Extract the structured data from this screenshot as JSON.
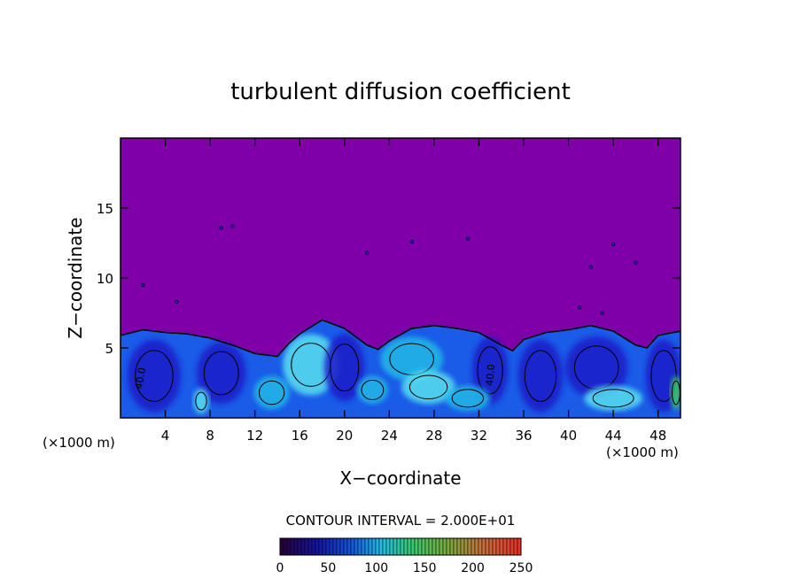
{
  "chart_data": {
    "type": "heatmap",
    "title": "turbulent diffusion coefficient",
    "xlabel": "X−coordinate",
    "ylabel": "Z−coordinate",
    "x_unit_left": "(×1000 m)",
    "x_unit_right": "(×1000 m)",
    "xlim": [
      0,
      50
    ],
    "ylim": [
      0,
      20
    ],
    "x_ticks": [
      4,
      8,
      12,
      16,
      20,
      24,
      28,
      32,
      36,
      40,
      44,
      48
    ],
    "y_ticks": [
      5,
      10,
      15
    ],
    "contour_interval_text": "CONTOUR INTERVAL = 2.000E+01",
    "contour_labels": [
      "40.0",
      "40.0"
    ],
    "colorbar": {
      "min": 0,
      "max": 250,
      "ticks": [
        0,
        50,
        100,
        150,
        200,
        250
      ]
    },
    "boundary_layer_top": [
      [
        0,
        5.9
      ],
      [
        2,
        6.3
      ],
      [
        4,
        6.1
      ],
      [
        6,
        6.0
      ],
      [
        8,
        5.7
      ],
      [
        10,
        5.2
      ],
      [
        12,
        4.6
      ],
      [
        14,
        4.4
      ],
      [
        15,
        5.3
      ],
      [
        16,
        6.0
      ],
      [
        18,
        7.0
      ],
      [
        20,
        6.4
      ],
      [
        22,
        5.2
      ],
      [
        23,
        4.9
      ],
      [
        24,
        5.5
      ],
      [
        26,
        6.4
      ],
      [
        28,
        6.6
      ],
      [
        30,
        6.4
      ],
      [
        32,
        6.1
      ],
      [
        34,
        5.2
      ],
      [
        35,
        4.8
      ],
      [
        36,
        5.6
      ],
      [
        38,
        6.1
      ],
      [
        40,
        6.3
      ],
      [
        42,
        6.6
      ],
      [
        44,
        6.2
      ],
      [
        46,
        5.2
      ],
      [
        47,
        5.0
      ],
      [
        48,
        5.9
      ],
      [
        50,
        6.2
      ]
    ],
    "colors": {
      "background": "#7f00a8",
      "deep_blue": "#1e1ec8",
      "mid_blue": "#1a5be8",
      "cyan": "#21b9e6",
      "light_cyan": "#59e0f0",
      "green": "#3ccf63"
    }
  }
}
